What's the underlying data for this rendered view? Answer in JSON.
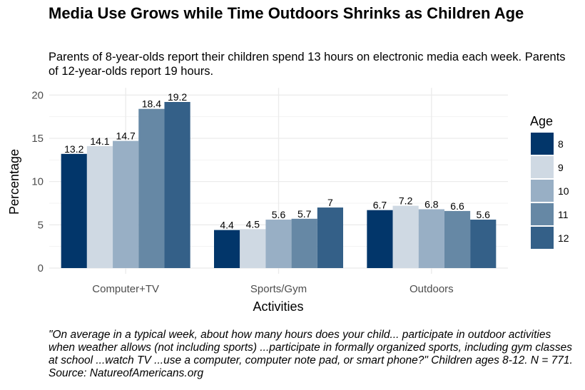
{
  "title": "Media Use Grows while Time Outdoors Shrinks as Children Age",
  "subtitle": "Parents of 8-year-olds report their children spend 13 hours on electronic media each week. Parents of 12-year-olds report 19 hours.",
  "caption": "\"On average in a typical week, about how many hours does your child... participate in outdoor activities when weather allows (not including sports) ...participate in formally organized sports, including gym classes at school ...watch TV ...use a computer, computer note pad, or smart phone?\" Children ages 8-12. N = 771. Source: NatureofAmericans.org",
  "chart_data": {
    "type": "bar",
    "categories": [
      "Computer+TV",
      "Sports/Gym",
      "Outdoors"
    ],
    "series": [
      {
        "name": "8",
        "color": "#02366a",
        "values": [
          13.2,
          4.4,
          6.7
        ]
      },
      {
        "name": "9",
        "color": "#cfd9e3",
        "values": [
          14.1,
          4.5,
          7.2
        ]
      },
      {
        "name": "10",
        "color": "#98afc5",
        "values": [
          14.7,
          5.6,
          6.8
        ]
      },
      {
        "name": "11",
        "color": "#6688a5",
        "values": [
          18.4,
          5.7,
          6.6
        ]
      },
      {
        "name": "12",
        "color": "#346088",
        "values": [
          19.2,
          7,
          5.6
        ]
      }
    ],
    "xlabel": "Activities",
    "ylabel": "Percentage",
    "ylim": [
      0,
      20
    ],
    "yticks": [
      0,
      5,
      10,
      15,
      20
    ],
    "legend_title": "Age",
    "legend_position": "right",
    "grid": true
  }
}
